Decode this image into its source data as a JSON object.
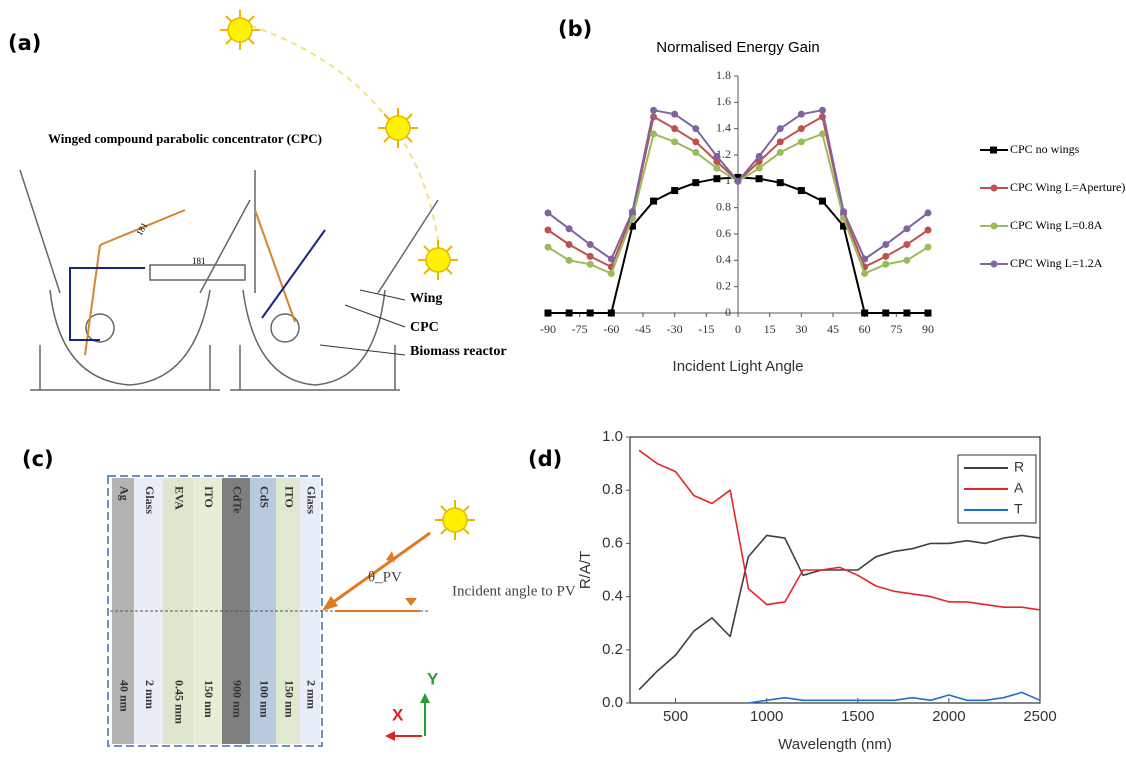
{
  "panel_labels": [
    "(a)",
    "(b)",
    "(c)",
    "(d)"
  ],
  "panel_a": {
    "title": "Winged compound parabolic concentrator (CPC)",
    "callouts": [
      "Wing",
      "CPC",
      "Biomass reactor"
    ],
    "dimensions": [
      "181",
      "181"
    ]
  },
  "panel_c": {
    "layers": [
      "Ag",
      "Glass",
      "EVA",
      "ITO",
      "CdTe",
      "CdS",
      "ITO",
      "Glass"
    ],
    "thicknesses": [
      "40 nm",
      "2 mm",
      "0.45 mm",
      "150 nm",
      "900 nm",
      "100 nm",
      "150 nm",
      "2 mm"
    ],
    "angle_symbol": "θ_PV",
    "angle_label": "Incident angle to PV",
    "axes": [
      "X",
      "Y"
    ]
  },
  "chart_data": [
    {
      "type": "line",
      "title": "Normalised Energy Gain",
      "x_label": "Incident Light Angle",
      "x": [
        -90,
        -80,
        -70,
        -60,
        -50,
        -40,
        -30,
        -20,
        -10,
        0,
        10,
        20,
        30,
        40,
        50,
        60,
        70,
        80,
        90
      ],
      "xlim": [
        -90,
        90
      ],
      "xticks": [
        -90,
        -75,
        -60,
        -45,
        -30,
        -15,
        0,
        15,
        30,
        45,
        60,
        75,
        90
      ],
      "ylim": [
        0,
        1.8
      ],
      "yticks": [
        0,
        0.2,
        0.4,
        0.6,
        0.8,
        1,
        1.2,
        1.4,
        1.6,
        1.8
      ],
      "legend": "right",
      "frame": false,
      "series": [
        {
          "name": "CPC no wings",
          "color": "#000000",
          "marker": "square",
          "values": [
            0,
            0,
            0,
            0,
            0.66,
            0.85,
            0.93,
            0.99,
            1.02,
            1.03,
            1.02,
            0.99,
            0.93,
            0.85,
            0.66,
            0,
            0,
            0,
            0
          ]
        },
        {
          "name": "CPC Wing L=Aperture)",
          "color": "#c0504d",
          "marker": "circle",
          "values": [
            0.63,
            0.52,
            0.43,
            0.35,
            0.75,
            1.49,
            1.4,
            1.3,
            1.15,
            1.0,
            1.15,
            1.3,
            1.4,
            1.49,
            0.75,
            0.35,
            0.43,
            0.52,
            0.63
          ]
        },
        {
          "name": "CPC Wing L=0.8A",
          "color": "#9bbb59",
          "marker": "circle",
          "values": [
            0.5,
            0.4,
            0.37,
            0.3,
            0.72,
            1.36,
            1.3,
            1.22,
            1.1,
            1.0,
            1.1,
            1.22,
            1.3,
            1.36,
            0.72,
            0.3,
            0.37,
            0.4,
            0.5
          ]
        },
        {
          "name": "CPC Wing L=1.2A",
          "color": "#8064a2",
          "marker": "circle",
          "values": [
            0.76,
            0.64,
            0.52,
            0.41,
            0.77,
            1.54,
            1.51,
            1.4,
            1.19,
            1.0,
            1.19,
            1.4,
            1.51,
            1.54,
            0.77,
            0.41,
            0.52,
            0.64,
            0.76
          ]
        }
      ]
    },
    {
      "type": "line",
      "x_label": "Wavelength (nm)",
      "y_label": "R/A/T",
      "x": [
        300,
        400,
        500,
        600,
        700,
        800,
        900,
        1000,
        1100,
        1200,
        1300,
        1400,
        1500,
        1600,
        1700,
        1800,
        1900,
        2000,
        2100,
        2200,
        2300,
        2400,
        2500
      ],
      "xlim": [
        250,
        2500
      ],
      "xticks": [
        500,
        1000,
        1500,
        2000,
        2500
      ],
      "ylim": [
        0,
        1
      ],
      "yticks": [
        {
          "value": 0,
          "label": "0.0"
        },
        0.2,
        0.4,
        0.6,
        0.8,
        {
          "value": 1,
          "label": "1.0"
        }
      ],
      "legend": "upper right",
      "frame": true,
      "series": [
        {
          "name": "R",
          "color": "#404040",
          "values": [
            0.05,
            0.12,
            0.18,
            0.27,
            0.32,
            0.25,
            0.55,
            0.63,
            0.62,
            0.48,
            0.5,
            0.5,
            0.5,
            0.55,
            0.57,
            0.58,
            0.6,
            0.6,
            0.61,
            0.6,
            0.62,
            0.63,
            0.62
          ]
        },
        {
          "name": "A",
          "color": "#e8262a",
          "values": [
            0.95,
            0.9,
            0.87,
            0.78,
            0.75,
            0.8,
            0.43,
            0.37,
            0.38,
            0.5,
            0.5,
            0.51,
            0.48,
            0.44,
            0.42,
            0.41,
            0.4,
            0.38,
            0.38,
            0.37,
            0.36,
            0.36,
            0.35
          ]
        },
        {
          "name": "T",
          "color": "#1f6fd1",
          "values": [
            null,
            null,
            null,
            null,
            null,
            null,
            0.0,
            0.01,
            0.02,
            0.01,
            0.01,
            0.01,
            0.01,
            0.01,
            0.01,
            0.02,
            0.01,
            0.03,
            0.01,
            0.01,
            0.02,
            0.04,
            0.01
          ]
        }
      ]
    }
  ]
}
